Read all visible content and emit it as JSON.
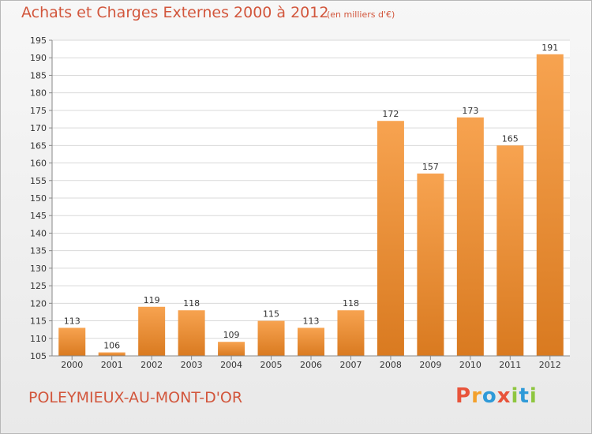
{
  "header": {
    "title": "Achats et Charges Externes 2000 à 2012",
    "subtitle": "(en milliers d'€)"
  },
  "footer": {
    "city": "POLEYMIEUX-AU-MONT-D'OR",
    "logo_text": "Proxiti"
  },
  "colors": {
    "title": "#d2563c",
    "bar_top": "#f7a350",
    "bar_bottom": "#d97a20",
    "logo_letters": [
      "#e8543b",
      "#f3a02c",
      "#2f9ad8",
      "#e8543b",
      "#8ec63f",
      "#2f9ad8",
      "#8ec63f"
    ]
  },
  "chart_data": {
    "type": "bar",
    "categories": [
      "2000",
      "2001",
      "2002",
      "2003",
      "2004",
      "2005",
      "2006",
      "2007",
      "2008",
      "2009",
      "2010",
      "2011",
      "2012"
    ],
    "values": [
      113,
      106,
      119,
      118,
      109,
      115,
      113,
      118,
      172,
      157,
      173,
      165,
      191
    ],
    "ylim": [
      105,
      195
    ],
    "yticks": [
      105,
      110,
      115,
      120,
      125,
      130,
      135,
      140,
      145,
      150,
      155,
      160,
      165,
      170,
      175,
      180,
      185,
      190,
      195
    ],
    "grid": true,
    "legend": "none"
  }
}
